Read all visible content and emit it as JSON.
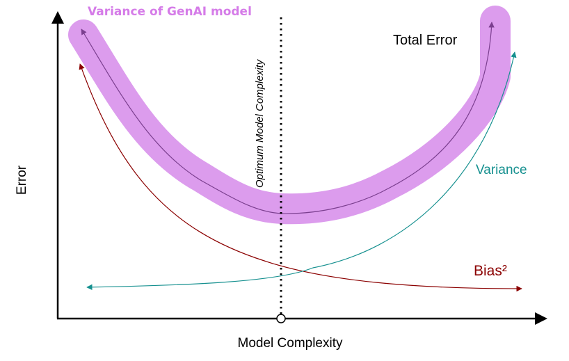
{
  "labels": {
    "band": "Variance of GenAI model",
    "total_error": "Total Error",
    "variance": "Variance",
    "bias": "Bias²",
    "optimum": "Optimum Model Complexity",
    "x_axis": "Model Complexity",
    "y_axis": "Error"
  },
  "colors": {
    "band": "#dc9ced",
    "band_label": "#d57be8",
    "total_error_curve": "#7b3f8f",
    "variance_curve": "#15908f",
    "bias_curve": "#8b0000",
    "axis": "#000000",
    "text": "#000000"
  }
}
